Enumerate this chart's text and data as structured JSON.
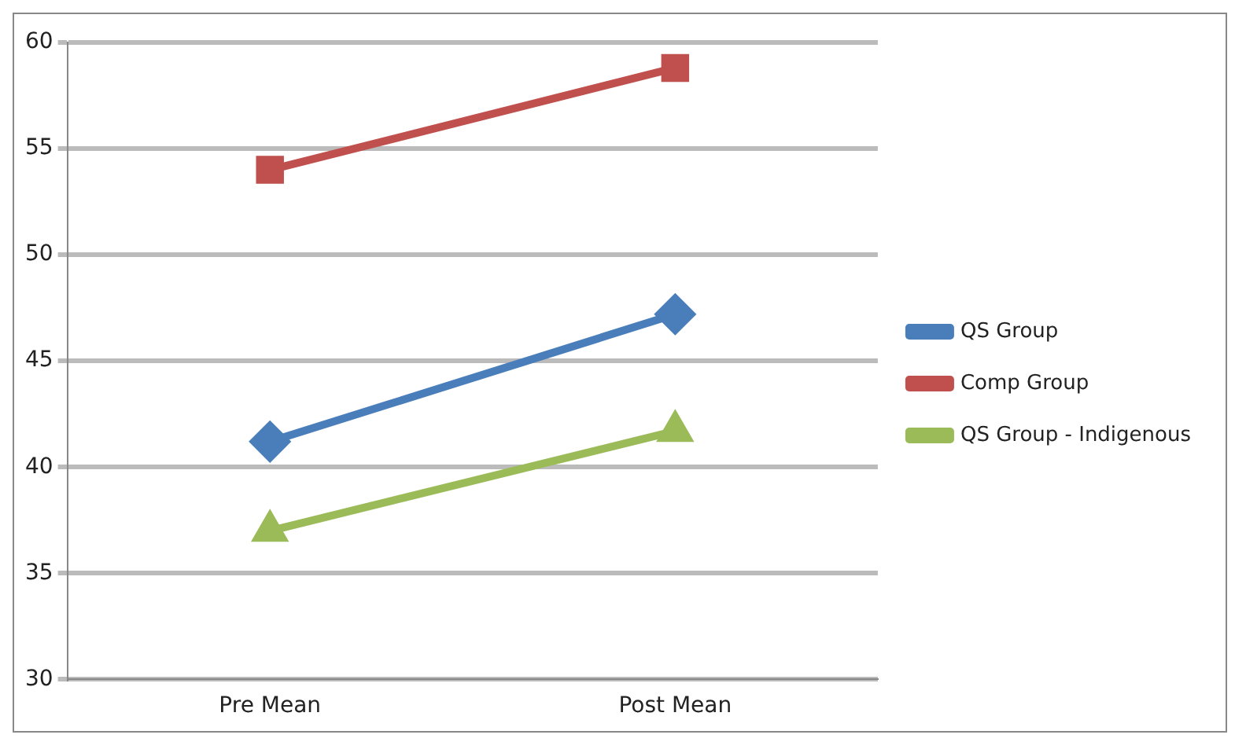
{
  "chart_data": {
    "type": "line",
    "categories": [
      "Pre Mean",
      "Post Mean"
    ],
    "ylim": [
      30,
      60
    ],
    "yticks": [
      30,
      35,
      40,
      45,
      50,
      55,
      60
    ],
    "grid": "y",
    "legend": "right",
    "series": [
      {
        "name": "QS Group",
        "color": "#4a7ebb",
        "marker": "diamond",
        "values": [
          41.2,
          47.2
        ]
      },
      {
        "name": "Comp Group",
        "color": "#c0504d",
        "marker": "square",
        "values": [
          54.0,
          58.8
        ]
      },
      {
        "name": "QS Group - Indigenous",
        "color": "#9bbb59",
        "marker": "triangle",
        "values": [
          37.0,
          41.7
        ]
      }
    ]
  }
}
